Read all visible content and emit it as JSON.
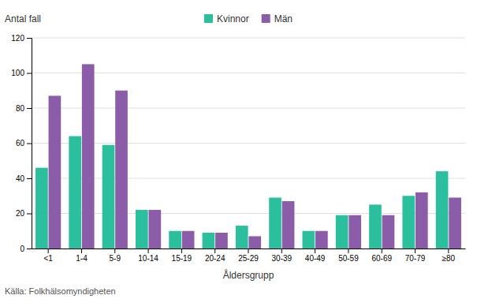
{
  "chart_data": {
    "type": "bar",
    "ylabel": "Antal fall",
    "xlabel": "Åldersgrupp",
    "annotations": [
      "Källa: Folkhälsomyndigheten"
    ],
    "categories": [
      "<1",
      "1-4",
      "5-9",
      "10-14",
      "15-19",
      "20-24",
      "25-29",
      "30-39",
      "40-49",
      "50-59",
      "60-69",
      "70-79",
      "≥80"
    ],
    "series": [
      {
        "name": "Kvinnor",
        "color": "#2bbf9e",
        "values": [
          46,
          64,
          59,
          22,
          10,
          9,
          13,
          29,
          10,
          19,
          25,
          30,
          44
        ]
      },
      {
        "name": "Män",
        "color": "#8b5ca8",
        "values": [
          87,
          105,
          90,
          22,
          10,
          9,
          7,
          27,
          10,
          19,
          19,
          32,
          29
        ]
      }
    ],
    "ylim": [
      0,
      120
    ],
    "yticks": [
      0,
      20,
      40,
      60,
      80,
      100,
      120
    ],
    "grid": true,
    "legend": "top"
  }
}
